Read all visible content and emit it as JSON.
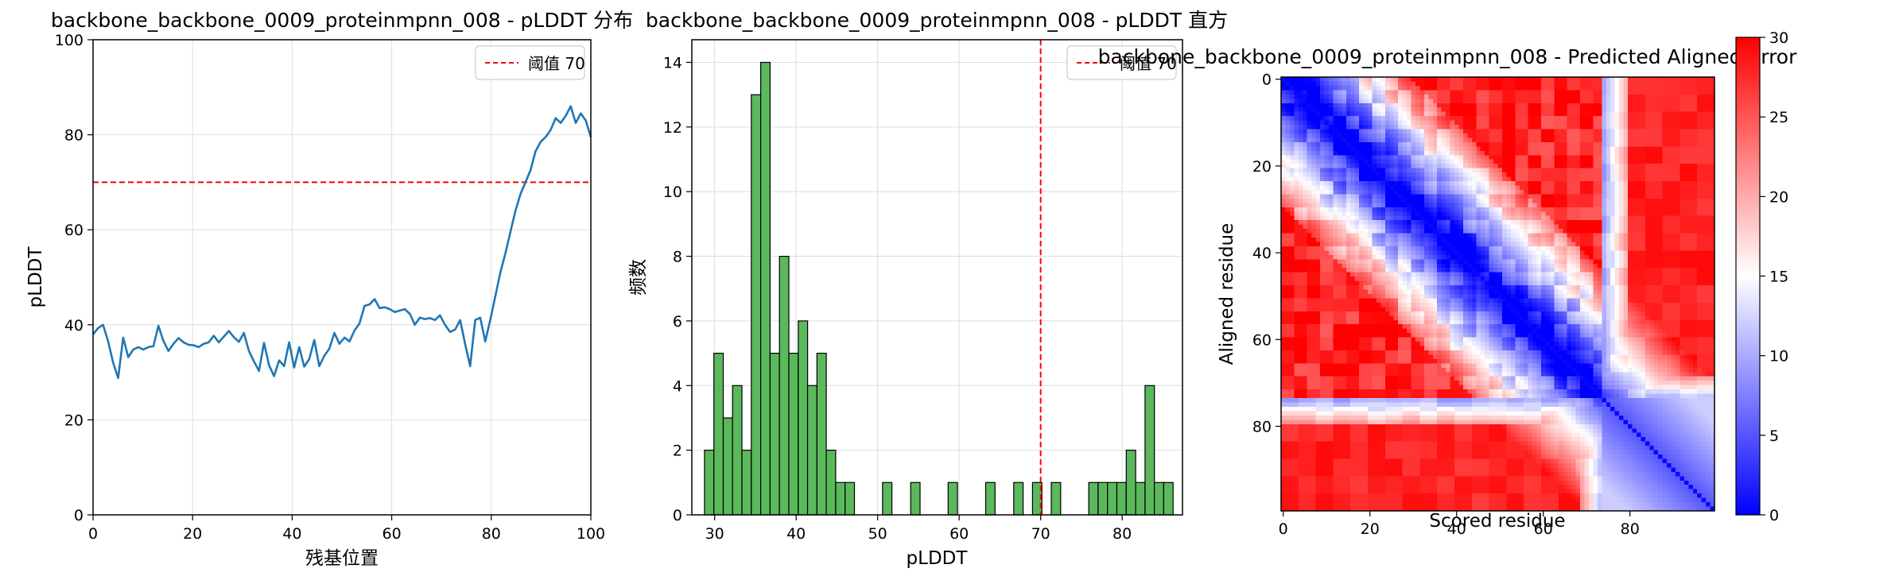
{
  "colors": {
    "line": "#1f77b4",
    "threshold": "#ff0000",
    "bar_fill": "#5cb85c",
    "bar_edge": "#000000",
    "grid": "#dddddd"
  },
  "chart_data": [
    {
      "type": "line",
      "title": "backbone_backbone_0009_proteinmpnn_008 - pLDDT 分布",
      "xlabel": "残基位置",
      "ylabel": "pLDDT",
      "xlim": [
        0,
        100
      ],
      "ylim": [
        0,
        100
      ],
      "xticks": [
        0,
        20,
        40,
        60,
        80,
        100
      ],
      "yticks": [
        0,
        20,
        40,
        60,
        80,
        100
      ],
      "grid": true,
      "legend": "top-right",
      "threshold": {
        "label": "阈值 70",
        "value": 70
      },
      "series": [
        {
          "values": [
            38.0,
            39.3,
            40.0,
            36.5,
            32.0,
            28.8,
            37.3,
            33.2,
            34.8,
            35.3,
            34.8,
            35.3,
            35.5,
            39.8,
            36.6,
            34.5,
            36.0,
            37.2,
            36.3,
            35.8,
            35.7,
            35.3,
            36.0,
            36.3,
            37.7,
            36.3,
            37.5,
            38.7,
            37.4,
            36.4,
            38.3,
            34.5,
            32.3,
            30.3,
            36.2,
            31.5,
            29.2,
            32.5,
            31.3,
            36.3,
            31.0,
            35.3,
            31.2,
            32.8,
            36.8,
            31.3,
            33.5,
            35.0,
            38.3,
            36.0,
            37.3,
            36.5,
            38.8,
            40.3,
            44.0,
            44.3,
            45.4,
            43.5,
            43.7,
            43.3,
            42.7,
            43.0,
            43.3,
            42.3,
            40.0,
            41.5,
            41.2,
            41.4,
            41.0,
            42.0,
            40.0,
            38.5,
            39.0,
            41.0,
            36.0,
            31.3,
            41.0,
            41.5,
            36.5,
            41.0,
            46.0,
            51.0,
            55.0,
            59.5,
            64.0,
            67.5,
            70.0,
            72.5,
            76.5,
            78.5,
            79.5,
            81.0,
            83.5,
            82.5,
            84.0,
            86.0,
            82.5,
            84.5,
            83.0,
            79.5
          ]
        }
      ]
    },
    {
      "type": "bar",
      "title": "backbone_backbone_0009_proteinmpnn_008 - pLDDT 直方",
      "xlabel": "pLDDT",
      "ylabel": "频数",
      "xlim": [
        27.2,
        87.4
      ],
      "ylim": [
        0,
        14.7
      ],
      "xticks": [
        30,
        40,
        50,
        60,
        70,
        80
      ],
      "yticks": [
        0,
        2,
        4,
        6,
        8,
        10,
        12,
        14
      ],
      "grid": true,
      "legend": "top-right",
      "threshold": {
        "label": "阈值 70",
        "value": 70
      },
      "bin_start": 28.75,
      "bin_width": 1.15,
      "counts": [
        2,
        5,
        3,
        4,
        2,
        13,
        14,
        5,
        8,
        5,
        6,
        4,
        5,
        2,
        1,
        1,
        0,
        0,
        0,
        1,
        0,
        0,
        1,
        0,
        0,
        0,
        1,
        0,
        0,
        0,
        1,
        0,
        0,
        1,
        0,
        1,
        0,
        1,
        0,
        0,
        0,
        1,
        1,
        1,
        1,
        2,
        1,
        4,
        1,
        1
      ]
    },
    {
      "type": "heatmap",
      "title": "backbone_backbone_0009_proteinmpnn_008 - Predicted Aligned Error",
      "xlabel": "Scored residue",
      "ylabel": "Aligned residue",
      "size": 100,
      "xticks": [
        0,
        20,
        40,
        60,
        80
      ],
      "yticks": [
        0,
        20,
        40,
        60,
        80
      ],
      "colorbar": {
        "min": 0,
        "max": 30,
        "ticks": [
          0,
          5,
          10,
          15,
          20,
          25,
          30
        ],
        "colormap": "bwr"
      },
      "domain_boundary": 74
    }
  ]
}
